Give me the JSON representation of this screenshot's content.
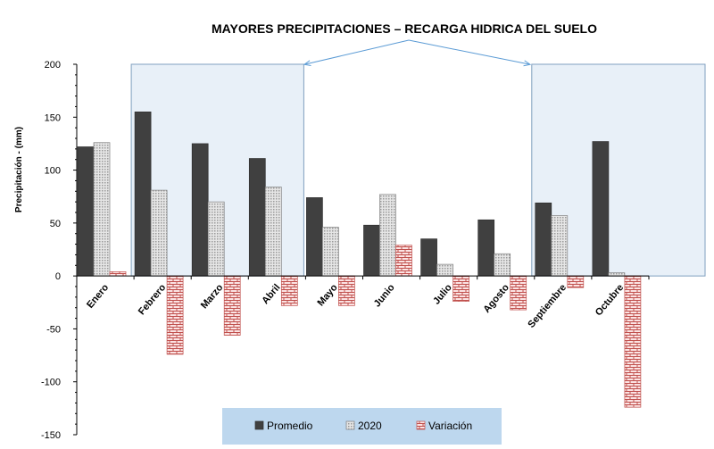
{
  "chart_data": {
    "type": "bar",
    "title": "MAYORES PRECIPITACIONES – RECARGA HIDRICA DEL SUELO",
    "xlabel": "",
    "ylabel": "Precipitación - (mm)",
    "ylim": [
      -150,
      200
    ],
    "yticks": [
      200,
      150,
      100,
      50,
      0,
      -50,
      -100,
      -150
    ],
    "grid": false,
    "legend_placement": "bottom",
    "categories": [
      "Enero",
      "Febrero",
      "Marzo",
      "Abril",
      "Mayo",
      "Junio",
      "Julio",
      "Agosto",
      "Septiembre",
      "Octubre"
    ],
    "series": [
      {
        "name": "Promedio",
        "color": "#404040",
        "values": [
          122,
          155,
          125,
          111,
          74,
          48,
          35,
          53,
          69,
          127
        ]
      },
      {
        "name": "2020",
        "color": "#d9d9d9",
        "values": [
          126,
          81,
          70,
          84,
          46,
          77,
          11,
          21,
          57,
          3
        ]
      },
      {
        "name": "Variación",
        "color": "#f2c4c4",
        "values": [
          4,
          -74,
          -56,
          -28,
          -28,
          29,
          -24,
          -32,
          -11,
          -124
        ]
      }
    ],
    "highlight_regions": [
      {
        "from": "Febrero",
        "to": "Abril"
      },
      {
        "from": "Septiembre",
        "to": "Octubre"
      }
    ],
    "highlight_color": "#dbe8f5",
    "legend_background": "#bdd7ee"
  }
}
